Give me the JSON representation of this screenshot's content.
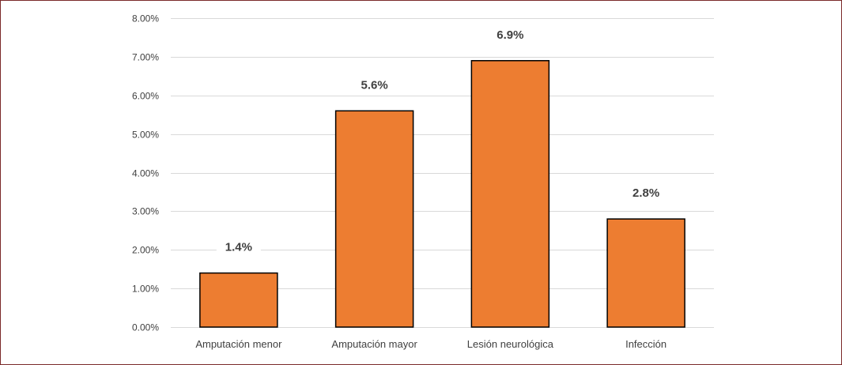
{
  "chart_data": {
    "type": "bar",
    "categories": [
      "Amputación menor",
      "Amputación mayor",
      "Lesión neurológica",
      "Infección"
    ],
    "values": [
      1.4,
      5.6,
      6.9,
      2.8
    ],
    "data_labels": [
      "1.4%",
      "5.6%",
      "6.9%",
      "2.8%"
    ],
    "title": "",
    "xlabel": "",
    "ylabel": "",
    "ylim": [
      0,
      8
    ],
    "yticks": [
      0,
      1,
      2,
      3,
      4,
      5,
      6,
      7,
      8
    ],
    "ytick_labels": [
      "0.00%",
      "1.00%",
      "2.00%",
      "3.00%",
      "4.00%",
      "5.00%",
      "6.00%",
      "7.00%",
      "8.00%"
    ],
    "grid": true,
    "legend": "none",
    "bar_color": "#ED7D31",
    "bar_edge_color": "#000000",
    "gridline_color": "#D9D9D9",
    "frame_color": "#7A2A2A"
  }
}
